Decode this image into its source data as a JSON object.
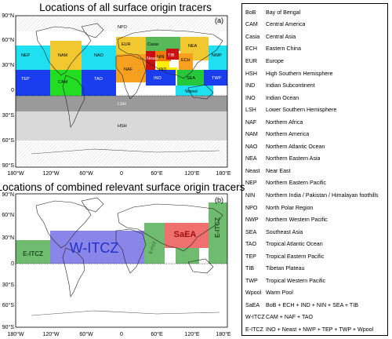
{
  "panel_a": {
    "title": "Locations of all surface origin tracers",
    "label": "(a)",
    "lat_ticks": [
      "90°N",
      "60°N",
      "30°N",
      "0",
      "30°S",
      "60°S",
      "90°S"
    ],
    "lon_ticks": [
      "180°W",
      "120°W",
      "60°W",
      "0",
      "60°E",
      "120°E",
      "180°E"
    ],
    "region_labels": [
      "NPO",
      "Casia",
      "NEA",
      "NAM",
      "NAO",
      "EUR",
      "NWP",
      "NEP",
      "Neast",
      "TIB",
      "ECH",
      "NIN",
      "NAF",
      "TEP",
      "CAM",
      "TAO",
      "IND",
      "INO",
      "SEA",
      "TWP",
      "Wpool",
      "LSH",
      "HSH"
    ],
    "colors": {
      "NAM": "#f2c830",
      "EUR": "#f2c830",
      "Casia": "#57b957",
      "NEA": "#f2c830",
      "NPO": "#e8e8e8",
      "cyan": "#1fe0f0",
      "blue": "#1a3df0",
      "green": "#22dd22",
      "orange": "#f7a020",
      "red": "#c81010",
      "darkorange": "#ee7a00",
      "yellow": "#ffee00",
      "LSH": "#999999",
      "HSH": "#d8d8d8",
      "SEA": "#25c73b",
      "TWP": "#1a3df0"
    }
  },
  "panel_b": {
    "title": "Locations of combined relevant surface origin tracers",
    "label": "(b)",
    "lat_ticks": [
      "90°N",
      "60°N",
      "30°N",
      "0",
      "30°S",
      "60°S",
      "90°S"
    ],
    "lon_ticks": [
      "180°W",
      "120°W",
      "60°W",
      "0",
      "60°E",
      "120°E",
      "180°E"
    ],
    "labels": [
      "W-ITCZ",
      "E-ITCZ",
      "SaEA",
      "E-ITCZ",
      "E-ITCZ"
    ],
    "colors": {
      "w_itcz": "#8a85e8",
      "w_itcz_text": "#2030c8",
      "e_itcz": "#6fbb6f",
      "e_itcz_text": "#1f6b1f",
      "saea": "#f07070",
      "saea_text": "#a01010"
    }
  },
  "legend": [
    {
      "abbr": "BoB",
      "desc": "Bay of Bengal"
    },
    {
      "abbr": "CAM",
      "desc": "Central America"
    },
    {
      "abbr": "Casia",
      "desc": "Central Asia"
    },
    {
      "abbr": "ECH",
      "desc": "Eastern China"
    },
    {
      "abbr": "EUR",
      "desc": "Europe"
    },
    {
      "abbr": "HSH",
      "desc": "High Southern Hemisphere"
    },
    {
      "abbr": "IND",
      "desc": "Indian Subcontinent"
    },
    {
      "abbr": "INO",
      "desc": "Indian Ocean"
    },
    {
      "abbr": "LSH",
      "desc": "Lower Southern Hemisphere"
    },
    {
      "abbr": "NAF",
      "desc": "Northern Africa"
    },
    {
      "abbr": "NAM",
      "desc": "Northern America"
    },
    {
      "abbr": "NAO",
      "desc": "Northern Atlantic Ocean"
    },
    {
      "abbr": "NEA",
      "desc": "Northern Eastern Asia"
    },
    {
      "abbr": "Neast",
      "desc": "Near East"
    },
    {
      "abbr": "NEP",
      "desc": "Northern Eastern Pacific"
    },
    {
      "abbr": "NIN",
      "desc": "Northern India / Pakistan / Himalayan foothills"
    },
    {
      "abbr": "NPO",
      "desc": "North Polar Region"
    },
    {
      "abbr": "NWP",
      "desc": "Northern Western Pacific"
    },
    {
      "abbr": "SEA",
      "desc": "Southeast Asia"
    },
    {
      "abbr": "TAO",
      "desc": "Tropical Atlantic Ocean"
    },
    {
      "abbr": "TEP",
      "desc": "Tropical Eastern Pacific"
    },
    {
      "abbr": "TIB",
      "desc": "Tibetan Plateau"
    },
    {
      "abbr": "TWP",
      "desc": "Tropical Western Pacific"
    },
    {
      "abbr": "Wpool",
      "desc": "Warm Pool"
    },
    {
      "abbr": "SaEA",
      "desc": "BoB + ECH + IND + NIN + SEA + TIB"
    },
    {
      "abbr": "W-ITCZ",
      "desc": "CAM + NAF + TAO"
    },
    {
      "abbr": "E-ITCZ",
      "desc": "INO + Neast + NWP + TEP + TWP + Wpool"
    }
  ]
}
